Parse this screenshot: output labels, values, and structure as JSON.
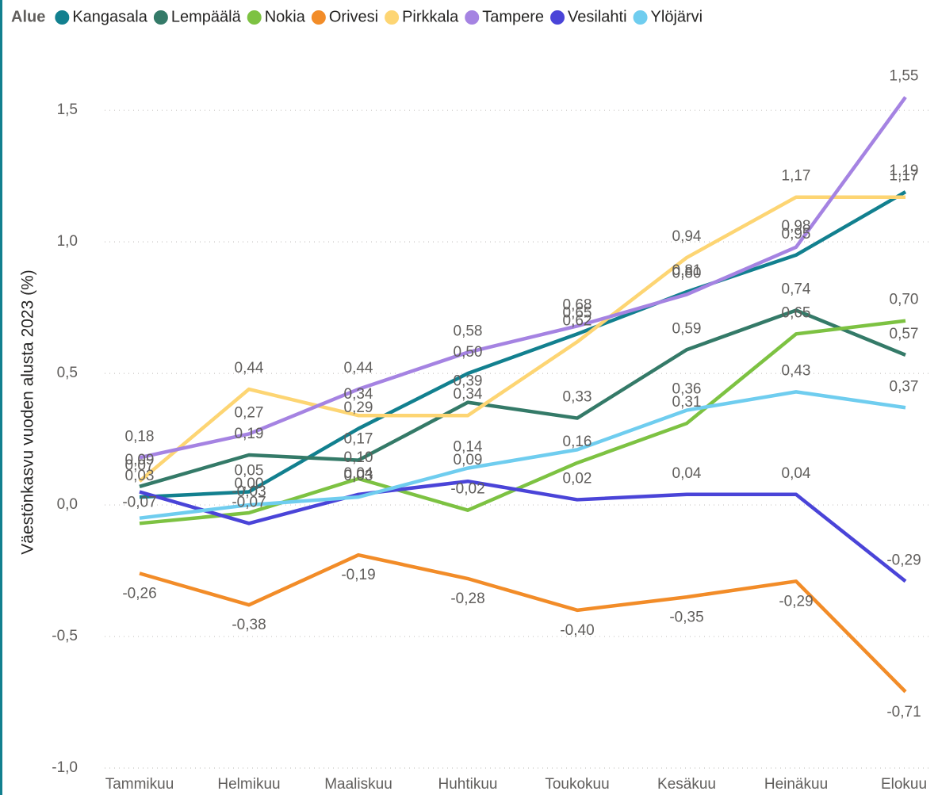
{
  "chart_data": {
    "type": "line",
    "legend_title": "Alue",
    "y_axis_label": "Väestönkasvu vuoden alusta 2023 (%)",
    "categories": [
      "Tammikuu",
      "Helmikuu",
      "Maaliskuu",
      "Huhtikuu",
      "Toukokuu",
      "Kesäkuu",
      "Heinäkuu",
      "Elokuu"
    ],
    "ylim": [
      -1.0,
      1.6
    ],
    "yticks": [
      {
        "value": -1.0,
        "label": "-1,0"
      },
      {
        "value": -0.5,
        "label": "-0,5"
      },
      {
        "value": 0.0,
        "label": "0,0"
      },
      {
        "value": 0.5,
        "label": "0,5"
      },
      {
        "value": 1.0,
        "label": "1,0"
      },
      {
        "value": 1.5,
        "label": "1,5"
      }
    ],
    "grid": true,
    "legend_position": "top-left",
    "series": [
      {
        "name": "Kangasala",
        "color": "#12808F",
        "values": [
          0.03,
          0.05,
          0.29,
          0.5,
          0.65,
          0.81,
          0.95,
          1.19
        ],
        "value_labels": [
          "0,03",
          "0,05",
          "0,29",
          "0,50",
          "0,65",
          "0,81",
          "0,95",
          "1,19"
        ]
      },
      {
        "name": "Lempäälä",
        "color": "#347A68",
        "values": [
          0.07,
          0.19,
          0.17,
          0.39,
          0.33,
          0.59,
          0.74,
          0.57
        ],
        "value_labels": [
          "0,07",
          "0,19",
          "0,17",
          "0,39",
          "0,33",
          "0,59",
          "0,74",
          "0,57"
        ]
      },
      {
        "name": "Nokia",
        "color": "#7DC242",
        "values": [
          -0.07,
          -0.03,
          0.1,
          -0.02,
          0.16,
          0.31,
          0.65,
          0.7
        ],
        "value_labels": [
          "-0,07",
          "-0,03",
          "0,10",
          "-0,02",
          "0,16",
          "0,31",
          "0,65",
          "0,70"
        ]
      },
      {
        "name": "Orivesi",
        "color": "#F28C28",
        "values": [
          -0.26,
          -0.38,
          -0.19,
          -0.28,
          -0.4,
          -0.35,
          -0.29,
          -0.71
        ],
        "value_labels": [
          "-0,26",
          "-0,38",
          "-0,19",
          "-0,28",
          "-0,40",
          "-0,35",
          "-0,29",
          "-0,71"
        ]
      },
      {
        "name": "Pirkkala",
        "color": "#FDD573",
        "values": [
          0.09,
          0.44,
          0.34,
          0.34,
          0.62,
          0.94,
          1.17,
          1.17
        ],
        "value_labels": [
          "0,09",
          "0,44",
          "0,34",
          "0,34",
          "0,62",
          "0,94",
          "1,17",
          "1,17"
        ]
      },
      {
        "name": "Tampere",
        "color": "#A583E2",
        "values": [
          0.18,
          0.27,
          0.44,
          0.58,
          0.68,
          0.8,
          0.98,
          1.55
        ],
        "value_labels": [
          "0,18",
          "0,27",
          "0,44",
          "0,58",
          "0,68",
          "0,80",
          "0,98",
          "1,55"
        ]
      },
      {
        "name": "Vesilahti",
        "color": "#4A44D8",
        "values": [
          0.05,
          -0.07,
          0.04,
          0.09,
          0.02,
          0.04,
          0.04,
          -0.29
        ],
        "value_labels": [
          null,
          "-0,07",
          "0,04",
          "0,09",
          "0,02",
          "0,04",
          "0,04",
          "-0,29"
        ]
      },
      {
        "name": "Ylöjärvi",
        "color": "#6FCDEF",
        "values": [
          -0.05,
          0.0,
          0.03,
          0.14,
          0.21,
          0.36,
          0.43,
          0.37
        ],
        "value_labels": [
          null,
          "0,00",
          "0,03",
          "0,14",
          null,
          "0,36",
          "0,43",
          "0,37"
        ]
      }
    ]
  }
}
